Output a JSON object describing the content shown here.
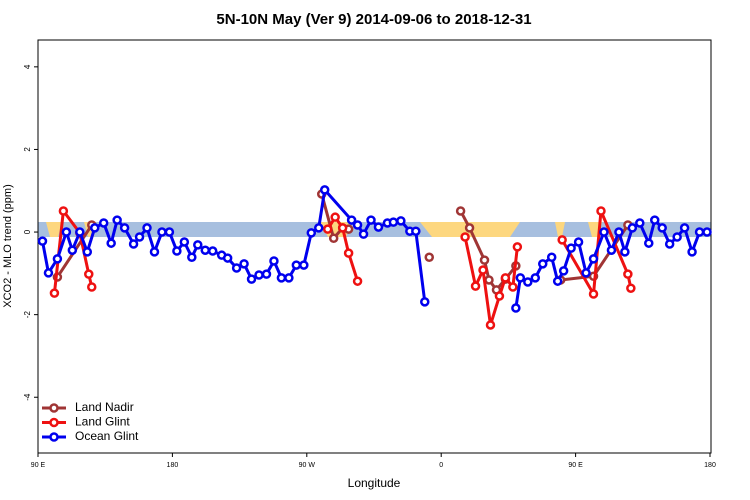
{
  "chart_data": {
    "type": "line",
    "title": "5N-10N May (Ver 9)   2014-09-06 to 2018-12-31",
    "x_label": "Longitude",
    "y_label": "XCO2 - MLO trend (ppm)",
    "xlim": [
      90,
      540
    ],
    "ylim": [
      -5.35,
      4.65
    ],
    "xticks": [
      {
        "value": 90,
        "label": "90 E"
      },
      {
        "value": 180,
        "label": "180"
      },
      {
        "value": 270,
        "label": "90 W"
      },
      {
        "value": 360,
        "label": "0"
      },
      {
        "value": 450,
        "label": "90 E"
      },
      {
        "value": 540,
        "label": "180"
      }
    ],
    "yticks": [
      -4,
      -2,
      0,
      2,
      4
    ],
    "legend": "bottom-left",
    "series": [
      {
        "name": "Land Nadir",
        "color": "#a03535",
        "x": [
          103,
          126,
          200,
          280,
          288,
          294,
          298,
          340,
          352,
          356,
          373,
          379,
          389,
          392,
          397,
          403,
          410,
          430,
          440,
          462,
          485
        ],
        "values": [
          -1.09,
          0.17,
          null,
          0.92,
          -0.15,
          0.1,
          0.07,
          null,
          -0.61,
          null,
          0.51,
          0.1,
          -0.68,
          -1.16,
          -1.4,
          -1.14,
          -0.82,
          null,
          -1.16,
          -1.07,
          0.17
        ]
      },
      {
        "name": "Land Glint",
        "color": "#ee1111",
        "x": [
          101,
          107,
          118,
          124,
          126,
          200,
          284,
          289,
          294,
          298,
          304,
          340,
          376,
          383,
          388,
          393,
          399,
          403,
          408,
          411,
          430,
          441,
          462,
          467,
          485,
          487
        ],
        "values": [
          -1.48,
          0.51,
          -0.02,
          -1.02,
          -1.33,
          null,
          0.07,
          0.36,
          0.1,
          -0.51,
          -1.19,
          null,
          -0.12,
          -1.31,
          -0.92,
          -2.25,
          -1.55,
          -1.11,
          -1.33,
          -0.36,
          null,
          -0.19,
          -1.5,
          0.51,
          -1.02,
          -1.36
        ]
      },
      {
        "name": "Ocean Glint",
        "color": "#0000ee",
        "x": [
          93,
          97,
          103,
          109,
          113,
          118,
          123,
          128,
          134,
          139,
          143,
          148,
          154,
          158,
          163,
          168,
          173,
          178,
          183,
          188,
          193,
          197,
          202,
          207,
          213,
          217,
          223,
          228,
          233,
          238,
          243,
          248,
          253,
          258,
          263,
          268,
          273,
          278,
          282,
          300,
          304,
          308,
          313,
          318,
          324,
          328,
          333,
          339,
          343,
          349,
          380,
          410,
          413,
          418,
          423,
          428,
          434,
          438,
          442,
          447,
          452,
          457,
          462,
          469,
          474,
          479,
          483,
          488,
          493,
          499,
          503,
          508,
          513,
          518,
          523,
          528,
          533,
          538
        ],
        "values": [
          -0.22,
          -0.99,
          -0.65,
          0,
          -0.44,
          0,
          -0.48,
          0.1,
          0.22,
          -0.27,
          0.29,
          0.1,
          -0.29,
          -0.12,
          0.1,
          -0.48,
          0,
          0,
          -0.46,
          -0.24,
          -0.61,
          -0.31,
          -0.44,
          -0.46,
          -0.56,
          -0.63,
          -0.87,
          -0.77,
          -1.14,
          -1.04,
          -1.02,
          -0.7,
          -1.11,
          -1.11,
          -0.8,
          -0.8,
          -0.02,
          0.1,
          1.02,
          0.29,
          0.17,
          -0.05,
          0.29,
          0.12,
          0.22,
          0.24,
          0.27,
          0.02,
          0.02,
          -1.69,
          null,
          -1.84,
          -1.11,
          -1.21,
          -1.11,
          -0.77,
          -0.61,
          -1.19,
          -0.94,
          -0.39,
          -0.24,
          -0.99,
          -0.65,
          0,
          -0.44,
          0,
          -0.48,
          0.1,
          0.22,
          -0.27,
          0.29,
          0.1,
          -0.29,
          -0.12,
          0.1,
          -0.48,
          0,
          0
        ]
      }
    ]
  }
}
